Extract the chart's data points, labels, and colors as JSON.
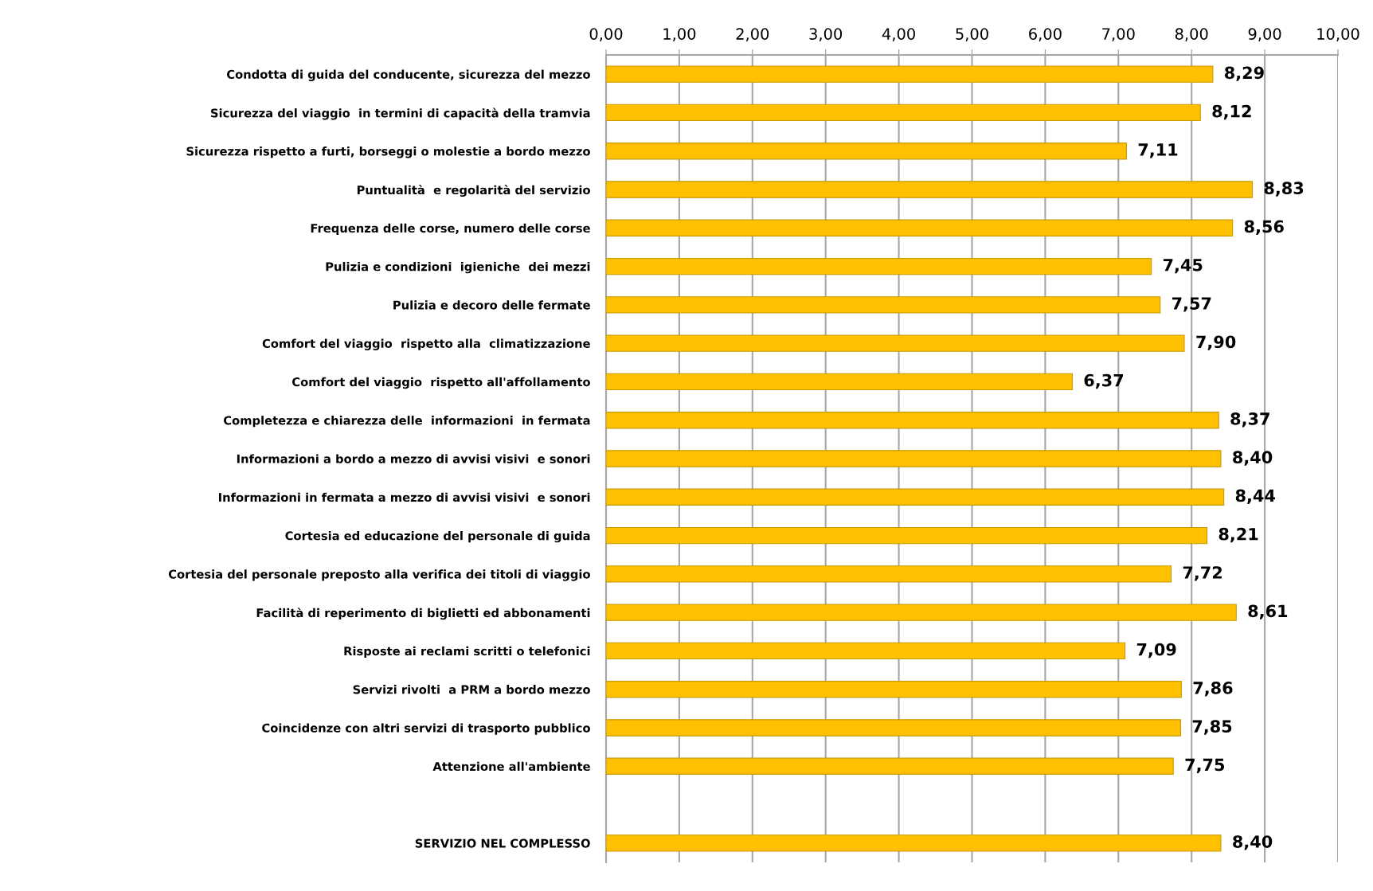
{
  "chart_data": {
    "type": "bar",
    "orientation": "horizontal",
    "categories": [
      "Condotta di guida del conducente, sicurezza del mezzo",
      "Sicurezza del viaggio  in termini di capacità della tramvia",
      "Sicurezza rispetto a furti, borseggi o molestie a bordo mezzo",
      "Puntualità  e regolarità del servizio",
      "Frequenza delle corse, numero delle corse",
      "Pulizia e condizioni  igieniche  dei mezzi",
      "Pulizia e decoro delle fermate",
      "Comfort del viaggio  rispetto alla  climatizzazione",
      "Comfort del viaggio  rispetto all'affollamento",
      "Completezza e chiarezza delle  informazioni  in fermata",
      "Informazioni a bordo a mezzo di avvisi visivi  e sonori",
      "Informazioni in fermata a mezzo di avvisi visivi  e sonori",
      "Cortesia ed educazione del personale di guida",
      "Cortesia del personale preposto alla verifica dei titoli di viaggio",
      "Facilità di reperimento di biglietti ed abbonamenti",
      "Risposte ai reclami scritti o telefonici",
      "Servizi rivolti  a PRM a bordo mezzo",
      "Coincidenze con altri servizi di trasporto pubblico",
      "Attenzione all'ambiente",
      null,
      "SERVIZIO NEL COMPLESSO"
    ],
    "values": [
      8.29,
      8.12,
      7.11,
      8.83,
      8.56,
      7.45,
      7.57,
      7.9,
      6.37,
      8.37,
      8.4,
      8.44,
      8.21,
      7.72,
      8.61,
      7.09,
      7.86,
      7.85,
      7.75,
      null,
      8.4
    ],
    "value_labels": [
      "8,29",
      "8,12",
      "7,11",
      "8,83",
      "8,56",
      "7,45",
      "7,57",
      "7,90",
      "6,37",
      "8,37",
      "8,40",
      "8,44",
      "8,21",
      "7,72",
      "8,61",
      "7,09",
      "7,86",
      "7,85",
      "7,75",
      null,
      "8,40"
    ],
    "color": "#ffc000",
    "xlim": [
      0,
      10
    ],
    "xticks": [
      {
        "value": 0,
        "label": "0,00"
      },
      {
        "value": 1,
        "label": "1,00"
      },
      {
        "value": 2,
        "label": "2,00"
      },
      {
        "value": 3,
        "label": "3,00"
      },
      {
        "value": 4,
        "label": "4,00"
      },
      {
        "value": 5,
        "label": "5,00"
      },
      {
        "value": 6,
        "label": "6,00"
      },
      {
        "value": 7,
        "label": "7,00"
      },
      {
        "value": 8,
        "label": "8,00"
      },
      {
        "value": 9,
        "label": "9,00"
      },
      {
        "value": 10,
        "label": "10,00"
      }
    ],
    "grid": "x",
    "legend": false
  }
}
